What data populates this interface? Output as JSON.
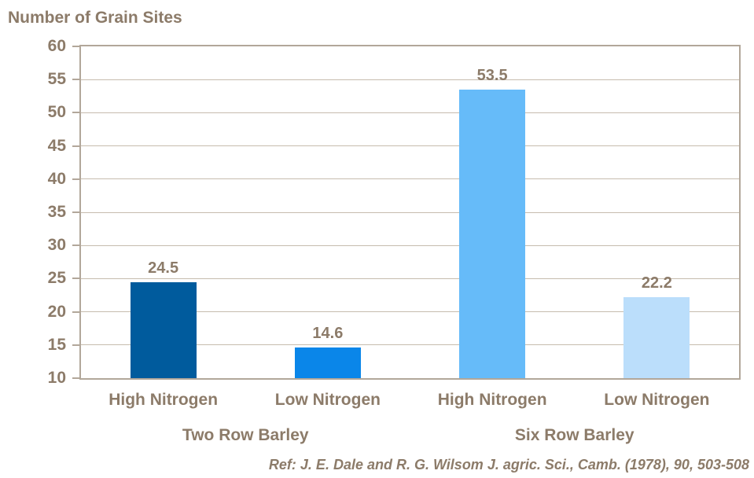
{
  "title": "Number of Grain Sites",
  "ref_note": "Ref: J. E. Dale and R. G. Wilsom J. agric. Sci., Camb. (1978), 90, 503-508",
  "colors": {
    "text": "#8C7B69",
    "gridline": "#C6BCAE",
    "axis_border": "#B2A79A",
    "bars": [
      "#005B9D",
      "#0A86E9",
      "#66BBF9",
      "#BBDEFB"
    ]
  },
  "chart_data": {
    "type": "bar",
    "title": "Number of Grain Sites",
    "categories": [
      "High Nitrogen",
      "Low Nitrogen",
      "High Nitrogen",
      "Low Nitrogen"
    ],
    "values": [
      24.5,
      14.6,
      53.5,
      22.2
    ],
    "value_labels": [
      "24.5",
      "14.6",
      "53.5",
      "22.2"
    ],
    "groups": [
      {
        "label": "Two Row Barley",
        "span": [
          0,
          1
        ]
      },
      {
        "label": "Six Row Barley",
        "span": [
          2,
          3
        ]
      }
    ],
    "ylabel": "",
    "xlabel": "",
    "ylim": [
      10,
      60
    ],
    "ytick_step": 5,
    "yticks": [
      60,
      55,
      50,
      45,
      40,
      35,
      30,
      25,
      20,
      15,
      10
    ],
    "grid": true,
    "legend": false,
    "annotation": "Ref: J. E. Dale and R. G. Wilsom J. agric. Sci., Camb. (1978), 90, 503-508"
  }
}
